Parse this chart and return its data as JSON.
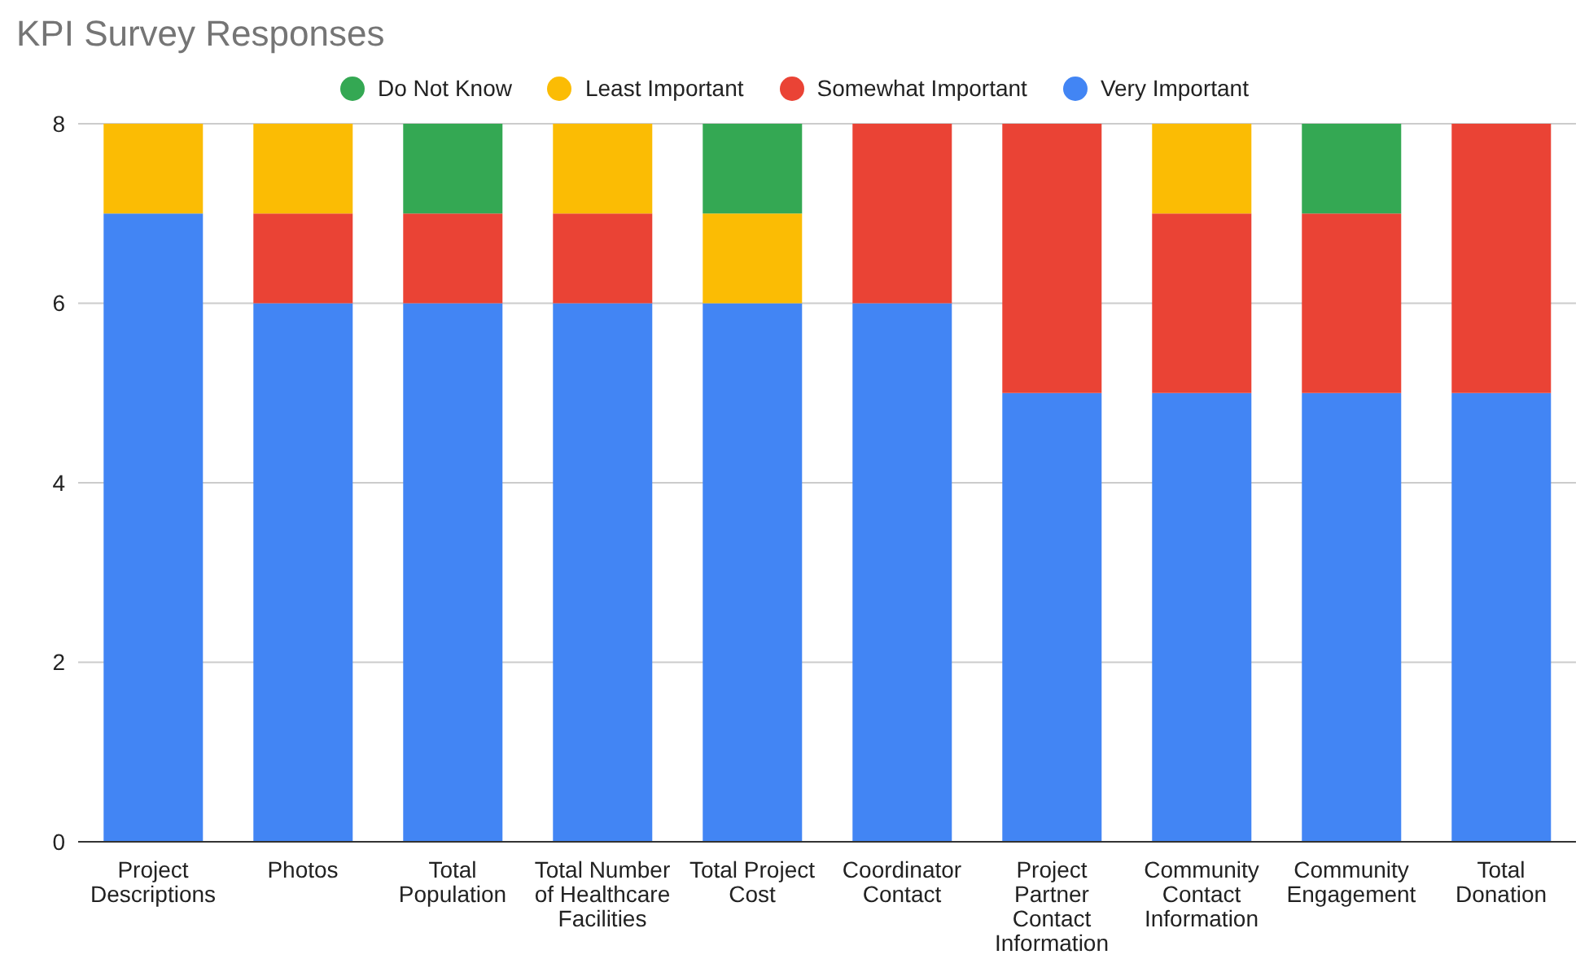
{
  "chart_data": {
    "type": "bar",
    "title": "KPI Survey Responses",
    "stacked": true,
    "grid": "y",
    "legend": "top",
    "categories": [
      "Project Descriptions",
      "Photos",
      "Total Population",
      "Total Number of Healthcare Facilities",
      "Total Project Cost",
      "Coordinator Contact",
      "Project Partner Contact Information",
      "Community Contact Information",
      "Community Engagement",
      "Total Donation"
    ],
    "series": [
      {
        "name": "Very Important",
        "color": "#4285f4",
        "values": [
          7,
          6,
          6,
          6,
          6,
          6,
          5,
          5,
          5,
          5
        ]
      },
      {
        "name": "Somewhat Important",
        "color": "#ea4335",
        "values": [
          0,
          1,
          1,
          1,
          0,
          2,
          3,
          2,
          2,
          3
        ]
      },
      {
        "name": "Least Important",
        "color": "#fbbc04",
        "values": [
          1,
          1,
          0,
          1,
          1,
          0,
          0,
          1,
          0,
          0
        ]
      },
      {
        "name": "Do Not Know",
        "color": "#34a853",
        "values": [
          0,
          0,
          1,
          0,
          1,
          0,
          0,
          0,
          1,
          0
        ]
      }
    ],
    "ylim": [
      0,
      8
    ],
    "yticks": [
      0,
      2,
      4,
      6,
      8
    ]
  }
}
